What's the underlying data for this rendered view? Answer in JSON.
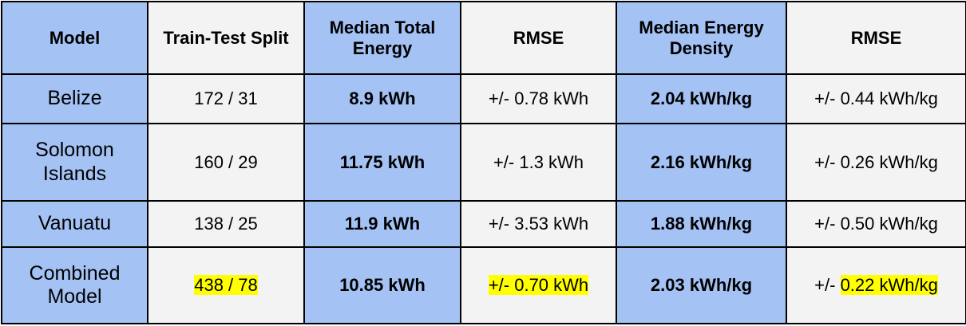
{
  "headers": [
    "Model",
    "Train-Test Split",
    "Median Total Energy",
    "RMSE",
    "Median Energy Density",
    "RMSE"
  ],
  "rows": [
    {
      "model": "Belize",
      "split": "172 / 31",
      "total_energy": "8.9 kWh",
      "rmse_energy": "+/- 0.78 kWh",
      "energy_density": "2.04 kWh/kg",
      "rmse_density_prefix": "+/- ",
      "rmse_density_value": "0.44 kWh/kg"
    },
    {
      "model": "Solomon Islands",
      "split": "160 / 29",
      "total_energy": "11.75 kWh",
      "rmse_energy": "+/- 1.3 kWh",
      "energy_density": "2.16 kWh/kg",
      "rmse_density_prefix": "+/- ",
      "rmse_density_value": "0.26 kWh/kg"
    },
    {
      "model": "Vanuatu",
      "split": "138 / 25",
      "total_energy": "11.9 kWh",
      "rmse_energy": "+/- 3.53 kWh",
      "energy_density": "1.88 kWh/kg",
      "rmse_density_prefix": "+/- ",
      "rmse_density_value": "0.50 kWh/kg"
    },
    {
      "model": "Combined Model",
      "split": "438 / 78",
      "total_energy": "10.85 kWh",
      "rmse_energy": "+/- 0.70 kWh",
      "energy_density": "2.03 kWh/kg",
      "rmse_density_prefix": "+/- ",
      "rmse_density_value": "0.22 kWh/kg"
    }
  ],
  "colors": {
    "header_blue": "#a4c2f4",
    "cell_grey": "#f3f3f3",
    "highlight": "#ffff00",
    "border": "#000000"
  }
}
